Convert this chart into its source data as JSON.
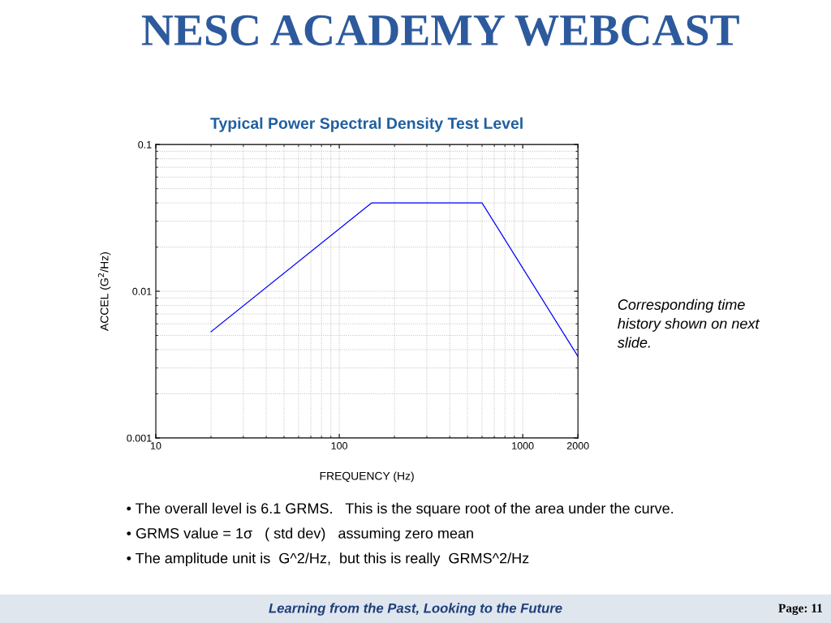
{
  "chart_data": {
    "type": "line",
    "title": "Typical Power Spectral Density Test Level",
    "xlabel": "FREQUENCY (Hz)",
    "ylabel": "ACCEL (G$^{2}$/Hz)",
    "series": [
      {
        "color": "#0000ff",
        "x": [
          20,
          150,
          600,
          2000
        ],
        "values": [
          0.0053,
          0.04,
          0.04,
          0.0036
        ]
      }
    ],
    "log": "xy",
    "xlim": [
      10,
      2000
    ],
    "ylim": [
      0.001,
      0.1
    ],
    "xticks": [
      10,
      100,
      1000,
      2000
    ],
    "yticks": [
      0.001,
      0.01,
      0.1
    ],
    "grid": true,
    "marker": "none",
    "line_style": "solid",
    "annotations": [
      "NESC ACADEMY WEBCAST",
      "Corresponding time\nhistory shown on next\nslide.",
      "• The overall level is 6.1 GRMS.   This is the square root of the area under the curve.",
      "• GRMS value = 1σ   ( std dev)   assuming zero mean",
      "• The amplitude unit is  G^2/Hz,  but this is really  GRMS^2/Hz",
      "Learning from the Past, Looking to the Future",
      "Page: 11"
    ]
  }
}
